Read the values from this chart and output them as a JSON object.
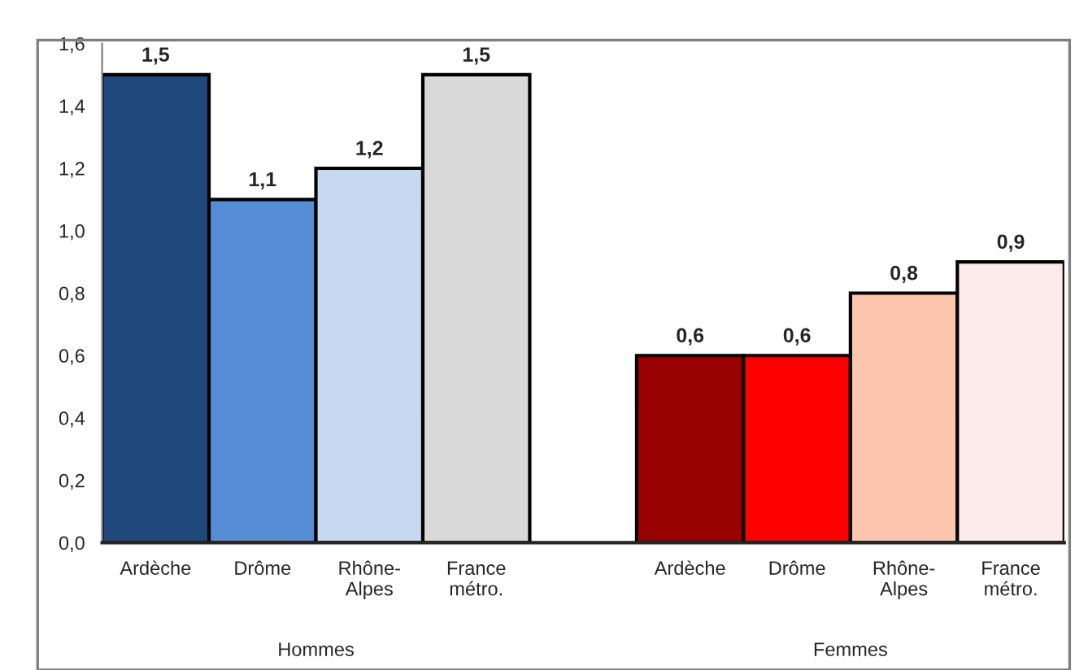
{
  "chart_data": {
    "type": "bar",
    "categories": [
      "Ardèche",
      "Drôme",
      "Rhône-Alpes",
      "France métro.",
      null,
      "Ardèche",
      "Drôme",
      "Rhône-Alpes",
      "France métro."
    ],
    "values": [
      1.5,
      1.1,
      1.2,
      1.5,
      null,
      0.6,
      0.6,
      0.8,
      0.9
    ],
    "colors": [
      "#1f497d",
      "#558ed5",
      "#c6d9f1",
      "#d9d9d9",
      "#ffffff",
      "#990000",
      "#ff0000",
      "#fcc5ad",
      "#fdeaea"
    ],
    "value_labels": [
      "1,5",
      "1,1",
      "1,2",
      "1,5",
      null,
      "0,6",
      "0,6",
      "0,8",
      "0,9"
    ],
    "ylim": [
      0,
      1.6
    ],
    "yticks": [
      {
        "value": 0,
        "label": "0,0"
      },
      {
        "value": 0.2,
        "label": "0,2"
      },
      {
        "value": 0.4,
        "label": "0,4"
      },
      {
        "value": 0.6,
        "label": "0,6"
      },
      {
        "value": 0.8,
        "label": "0,8"
      },
      {
        "value": 1.0,
        "label": "1,0"
      },
      {
        "value": 1.2,
        "label": "1,2"
      },
      {
        "value": 1.4,
        "label": "1,4"
      },
      {
        "value": 1.6,
        "label": "1,6"
      }
    ],
    "annotations": [
      "Hommes",
      "Femmes"
    ],
    "grid": false,
    "legend": false
  }
}
